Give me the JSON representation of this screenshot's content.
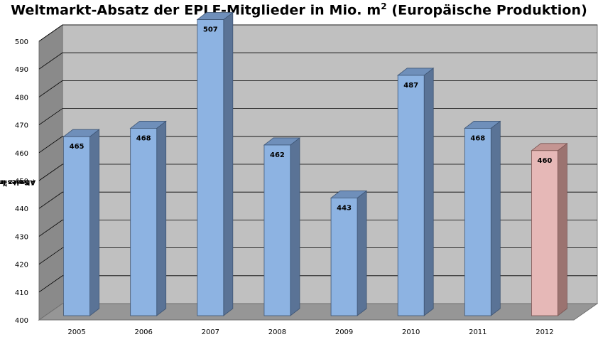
{
  "chart_data": {
    "type": "bar",
    "title_main": "Weltmarkt-Absatz der EPLF-Mitglieder in Mio. m",
    "title_sup": "2",
    "title_suffix": " (Europäische Produktion)",
    "ylabel_main": "Absatz in Mio. m",
    "ylabel_sup1": "2",
    "ylabel_mid": " / Sales in Mil. m",
    "ylabel_sup2": "2",
    "categories": [
      "2005",
      "2006",
      "2007",
      "2008",
      "2009",
      "2010",
      "2011",
      "2012"
    ],
    "values": [
      465,
      468,
      507,
      462,
      443,
      487,
      468,
      460
    ],
    "data_labels": [
      "465",
      "468",
      "507",
      "462",
      "443",
      "487",
      "468",
      "460"
    ],
    "ylim": [
      400,
      500
    ],
    "yticks": [
      "400",
      "410",
      "420",
      "430",
      "440",
      "450",
      "460",
      "470",
      "480",
      "490",
      "500"
    ],
    "grid": true,
    "bar_style": "3d-column",
    "colors": {
      "bar_front": "#8db3e2",
      "bar_top": "#6f8fba",
      "bar_side": "#5a7396",
      "highlight_front": "#e6b8b7",
      "highlight_top": "#c49592",
      "highlight_side": "#9b7370",
      "back_wall": "#c0c0c0",
      "side_wall": "#8a8a8a",
      "floor": "#969696",
      "gridline": "#000000"
    },
    "highlight_category": "2012"
  }
}
